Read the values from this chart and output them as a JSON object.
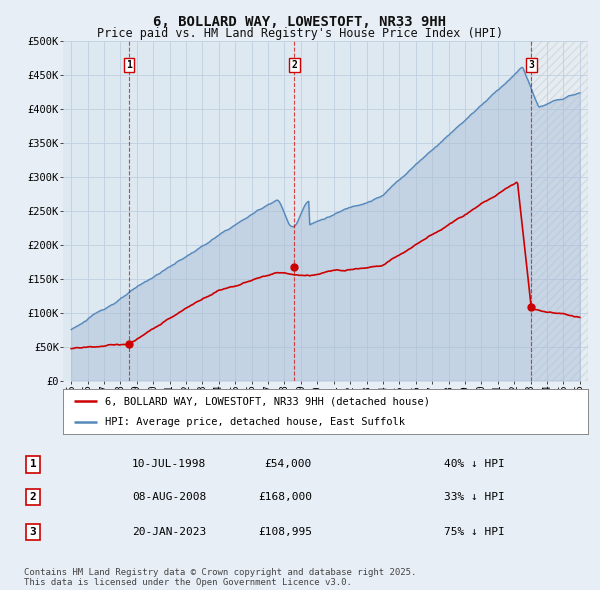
{
  "title": "6, BOLLARD WAY, LOWESTOFT, NR33 9HH",
  "subtitle": "Price paid vs. HM Land Registry's House Price Index (HPI)",
  "ylim": [
    0,
    500000
  ],
  "yticks": [
    0,
    50000,
    100000,
    150000,
    200000,
    250000,
    300000,
    350000,
    400000,
    450000,
    500000
  ],
  "ytick_labels": [
    "£0",
    "£50K",
    "£100K",
    "£150K",
    "£200K",
    "£250K",
    "£300K",
    "£350K",
    "£400K",
    "£450K",
    "£500K"
  ],
  "xlim": [
    1994.5,
    2026.5
  ],
  "background_color": "#e8eef5",
  "plot_bg_color": "#dde8f0",
  "grid_color": "#c0cfe0",
  "red_line_color": "#cc0000",
  "blue_line_color": "#5588bb",
  "blue_fill_color": "#aabfd8",
  "transactions": [
    {
      "label": "1",
      "date_num": 1998.53,
      "price": 54000,
      "note": "10-JUL-1998",
      "amount": "£54,000",
      "pct": "40% ↓ HPI"
    },
    {
      "label": "2",
      "date_num": 2008.6,
      "price": 168000,
      "note": "08-AUG-2008",
      "amount": "£168,000",
      "pct": "33% ↓ HPI"
    },
    {
      "label": "3",
      "date_num": 2023.05,
      "price": 108995,
      "note": "20-JAN-2023",
      "amount": "£108,995",
      "pct": "75% ↓ HPI"
    }
  ],
  "legend_entries": [
    {
      "label": "6, BOLLARD WAY, LOWESTOFT, NR33 9HH (detached house)",
      "color": "#cc0000"
    },
    {
      "label": "HPI: Average price, detached house, East Suffolk",
      "color": "#5588bb"
    }
  ],
  "footer": "Contains HM Land Registry data © Crown copyright and database right 2025.\nThis data is licensed under the Open Government Licence v3.0.",
  "title_fontsize": 10,
  "subtitle_fontsize": 8.5
}
